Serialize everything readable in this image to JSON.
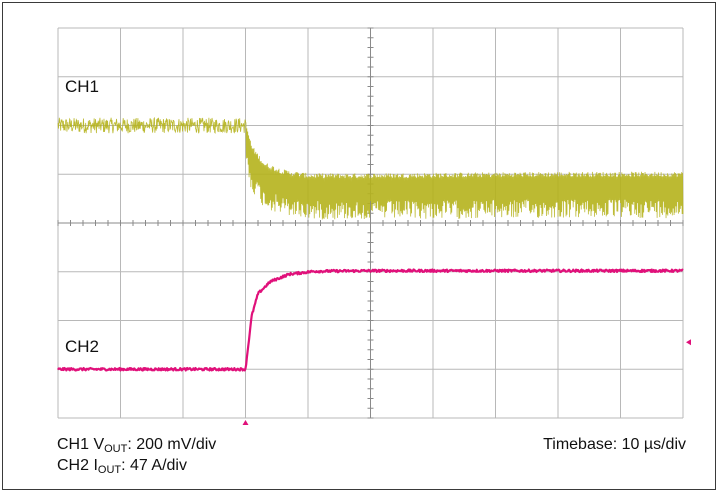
{
  "chart_data": {
    "type": "line",
    "title": "",
    "xlabel": "",
    "ylabel": "",
    "grid": true,
    "grid_divisions": {
      "x": 10,
      "y": 8
    },
    "x_unit": "µs",
    "xlim": [
      0,
      100
    ],
    "ylim_div": [
      -4,
      4
    ],
    "trigger_time": 30,
    "series": [
      {
        "name": "CH1",
        "color": "#b5b21c",
        "style": "noisy",
        "points": [
          [
            0,
            2.0
          ],
          [
            30,
            2.0
          ],
          [
            31,
            1.5
          ],
          [
            33,
            1.15
          ],
          [
            36,
            1.0
          ],
          [
            40,
            0.92
          ],
          [
            50,
            0.92
          ],
          [
            60,
            0.93
          ],
          [
            70,
            0.94
          ],
          [
            80,
            0.95
          ],
          [
            90,
            0.95
          ],
          [
            100,
            0.95
          ]
        ],
        "ripple_before_div": 0.32,
        "ripple_after_div": 0.85
      },
      {
        "name": "CH2",
        "color": "#e0107a",
        "style": "clean",
        "points": [
          [
            0,
            -3.0
          ],
          [
            30,
            -3.0
          ],
          [
            31,
            -1.9
          ],
          [
            32,
            -1.45
          ],
          [
            34,
            -1.2
          ],
          [
            37,
            -1.05
          ],
          [
            41,
            -0.99
          ],
          [
            50,
            -0.98
          ],
          [
            60,
            -0.98
          ],
          [
            100,
            -0.98
          ]
        ]
      }
    ],
    "markers": {
      "trigger": "bottom",
      "ch2_level": "right"
    }
  },
  "labels": {
    "ch1": "CH1",
    "ch2": "CH2",
    "caption_ch1_prefix": "CH1 V",
    "caption_ch1_sub": "OUT",
    "caption_ch1_suffix": ": 200 mV/div",
    "caption_ch2_prefix": "CH2 I",
    "caption_ch2_sub": "OUT",
    "caption_ch2_suffix": ": 47 A/div",
    "timebase": "Timebase: 10 µs/div"
  },
  "colors": {
    "grid": "#b8b8b8",
    "grid_center": "#8a8a8a",
    "ch1": "#b5b21c",
    "ch2": "#e0107a",
    "text": "#111111"
  }
}
